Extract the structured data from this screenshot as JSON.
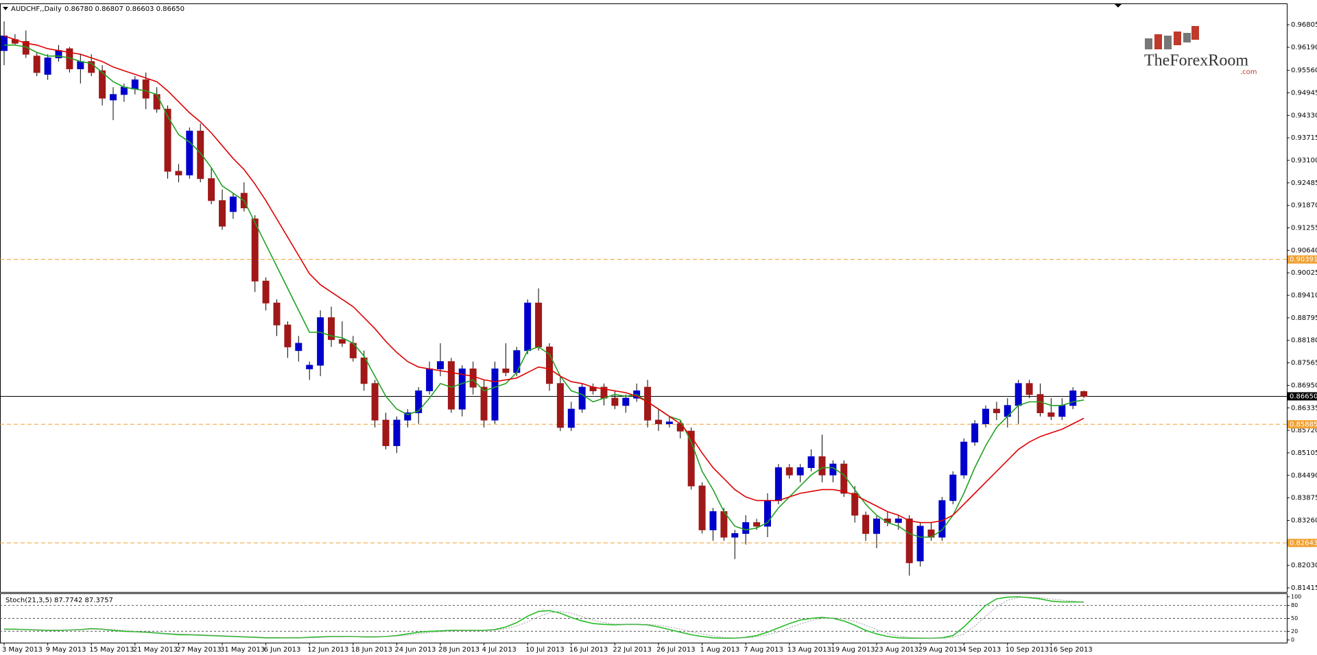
{
  "chart_data": {
    "type": "candlestick",
    "title": "AUDCHF,,Daily",
    "title_values": "0.86780 0.86807 0.86603 0.86650",
    "up_color": "#0000cc",
    "down_color": "#a01818",
    "wick_color": "#000000",
    "categories": [
      "3 May 2013",
      null,
      null,
      null,
      "9 May 2013",
      null,
      null,
      null,
      "15 May 2013",
      null,
      null,
      null,
      "21 May 2013",
      null,
      null,
      null,
      "27 May 2013",
      null,
      null,
      null,
      "31 May 2013",
      null,
      null,
      null,
      "6 Jun 2013",
      null,
      null,
      null,
      "12 Jun 2013",
      null,
      null,
      null,
      "18 Jun 2013",
      null,
      null,
      null,
      "24 Jun 2013",
      null,
      null,
      null,
      "28 Jun 2013",
      null,
      null,
      null,
      "4 Jul 2013",
      null,
      null,
      null,
      "10 Jul 2013",
      null,
      null,
      null,
      "16 Jul 2013",
      null,
      null,
      null,
      "22 Jul 2013",
      null,
      null,
      null,
      "26 Jul 2013",
      null,
      null,
      null,
      "1 Aug 2013",
      null,
      null,
      null,
      "7 Aug 2013",
      null,
      null,
      null,
      "13 Aug 2013",
      null,
      null,
      null,
      "19 Aug 2013",
      null,
      null,
      null,
      "23 Aug 2013",
      null,
      null,
      null,
      "29 Aug 2013",
      null,
      null,
      null,
      "4 Sep 2013",
      null,
      null,
      null,
      "10 Sep 2013",
      null,
      null,
      null,
      "16 Sep 2013",
      null,
      null,
      null
    ],
    "open": [
      0.961,
      0.964,
      0.9635,
      0.9595,
      0.9545,
      0.959,
      0.9615,
      0.956,
      0.958,
      0.9555,
      0.9475,
      0.949,
      0.9505,
      0.953,
      0.949,
      0.945,
      0.928,
      0.927,
      0.939,
      0.926,
      0.92,
      0.917,
      0.922,
      0.915,
      0.898,
      0.892,
      0.886,
      0.879,
      0.874,
      0.875,
      0.888,
      0.882,
      0.881,
      0.877,
      0.87,
      0.86,
      0.853,
      0.86,
      0.862,
      0.868,
      0.874,
      0.876,
      0.863,
      0.874,
      0.869,
      0.86,
      0.874,
      0.873,
      0.879,
      0.892,
      0.88,
      0.87,
      0.858,
      0.863,
      0.869,
      0.869,
      0.866,
      0.864,
      0.866,
      0.869,
      0.86,
      0.859,
      0.859,
      0.857,
      0.842,
      0.83,
      0.835,
      0.828,
      0.829,
      0.832,
      0.831,
      0.838,
      0.847,
      0.845,
      0.847,
      0.85,
      0.845,
      0.848,
      0.84,
      0.834,
      0.829,
      0.833,
      0.832,
      0.833,
      0.8215,
      0.83,
      0.828,
      0.838,
      0.845,
      0.854,
      0.859,
      0.863,
      0.861,
      0.864,
      0.87,
      0.867,
      0.862,
      0.861,
      0.864,
      0.8678
    ],
    "high": [
      0.969,
      0.9655,
      0.9665,
      0.9605,
      0.96,
      0.9625,
      0.962,
      0.96,
      0.96,
      0.957,
      0.951,
      0.952,
      0.954,
      0.955,
      0.951,
      0.946,
      0.93,
      0.94,
      0.941,
      0.929,
      0.923,
      0.922,
      0.925,
      0.916,
      0.899,
      0.893,
      0.887,
      0.883,
      0.876,
      0.89,
      0.891,
      0.887,
      0.883,
      0.879,
      0.871,
      0.862,
      0.861,
      0.863,
      0.869,
      0.876,
      0.881,
      0.877,
      0.875,
      0.876,
      0.871,
      0.876,
      0.881,
      0.88,
      0.893,
      0.896,
      0.881,
      0.872,
      0.865,
      0.87,
      0.87,
      0.87,
      0.868,
      0.867,
      0.87,
      0.871,
      0.863,
      0.861,
      0.86,
      0.858,
      0.843,
      0.836,
      0.836,
      0.83,
      0.834,
      0.833,
      0.84,
      0.848,
      0.848,
      0.848,
      0.852,
      0.856,
      0.849,
      0.849,
      0.842,
      0.835,
      0.834,
      0.835,
      0.834,
      0.834,
      0.832,
      0.832,
      0.839,
      0.846,
      0.855,
      0.86,
      0.864,
      0.865,
      0.866,
      0.871,
      0.871,
      0.87,
      0.866,
      0.866,
      0.869,
      0.86807
    ],
    "low": [
      0.957,
      0.9625,
      0.959,
      0.954,
      0.953,
      0.958,
      0.955,
      0.952,
      0.954,
      0.946,
      0.942,
      0.947,
      0.949,
      0.945,
      0.944,
      0.926,
      0.925,
      0.926,
      0.925,
      0.919,
      0.912,
      0.915,
      0.917,
      0.895,
      0.89,
      0.883,
      0.877,
      0.876,
      0.871,
      0.872,
      0.88,
      0.88,
      0.876,
      0.868,
      0.858,
      0.852,
      0.851,
      0.858,
      0.859,
      0.867,
      0.872,
      0.862,
      0.861,
      0.867,
      0.858,
      0.859,
      0.872,
      0.872,
      0.878,
      0.879,
      0.868,
      0.857,
      0.857,
      0.862,
      0.867,
      0.864,
      0.863,
      0.862,
      0.865,
      0.858,
      0.857,
      0.858,
      0.855,
      0.841,
      0.829,
      0.827,
      0.827,
      0.822,
      0.826,
      0.83,
      0.828,
      0.837,
      0.844,
      0.843,
      0.846,
      0.843,
      0.843,
      0.839,
      0.832,
      0.827,
      0.825,
      0.831,
      0.83,
      0.8175,
      0.82,
      0.827,
      0.827,
      0.837,
      0.844,
      0.853,
      0.858,
      0.86,
      0.858,
      0.859,
      0.866,
      0.861,
      0.86,
      0.86,
      0.863,
      0.86603
    ],
    "close": [
      0.965,
      0.963,
      0.96,
      0.955,
      0.959,
      0.961,
      0.956,
      0.958,
      0.955,
      0.948,
      0.949,
      0.951,
      0.953,
      0.948,
      0.945,
      0.928,
      0.927,
      0.939,
      0.926,
      0.92,
      0.913,
      0.921,
      0.918,
      0.898,
      0.892,
      0.886,
      0.88,
      0.881,
      0.875,
      0.888,
      0.882,
      0.881,
      0.877,
      0.87,
      0.86,
      0.853,
      0.86,
      0.862,
      0.868,
      0.874,
      0.876,
      0.863,
      0.874,
      0.869,
      0.86,
      0.874,
      0.873,
      0.879,
      0.892,
      0.88,
      0.87,
      0.858,
      0.863,
      0.869,
      0.868,
      0.866,
      0.864,
      0.866,
      0.868,
      0.86,
      0.859,
      0.8595,
      0.857,
      0.842,
      0.83,
      0.835,
      0.828,
      0.829,
      0.832,
      0.831,
      0.838,
      0.847,
      0.845,
      0.847,
      0.85,
      0.845,
      0.848,
      0.84,
      0.834,
      0.829,
      0.833,
      0.832,
      0.833,
      0.821,
      0.831,
      0.828,
      0.838,
      0.845,
      0.854,
      0.859,
      0.863,
      0.862,
      0.864,
      0.87,
      0.867,
      0.862,
      0.861,
      0.864,
      0.868,
      0.8665
    ],
    "series": [
      {
        "color": "#22a022",
        "values": [
          0.9625,
          0.9625,
          0.962,
          0.9605,
          0.9595,
          0.9595,
          0.959,
          0.958,
          0.9575,
          0.955,
          0.9525,
          0.951,
          0.9505,
          0.95,
          0.949,
          0.943,
          0.938,
          0.936,
          0.933,
          0.929,
          0.924,
          0.922,
          0.92,
          0.914,
          0.908,
          0.902,
          0.896,
          0.89,
          0.884,
          0.884,
          0.883,
          0.8825,
          0.881,
          0.8775,
          0.872,
          0.8665,
          0.863,
          0.8615,
          0.8625,
          0.866,
          0.87,
          0.869,
          0.87,
          0.871,
          0.868,
          0.869,
          0.87,
          0.873,
          0.879,
          0.88,
          0.878,
          0.872,
          0.868,
          0.867,
          0.865,
          0.866,
          0.867,
          0.8665,
          0.867,
          0.865,
          0.863,
          0.861,
          0.86,
          0.854,
          0.846,
          0.841,
          0.835,
          0.831,
          0.83,
          0.8305,
          0.832,
          0.836,
          0.839,
          0.842,
          0.845,
          0.847,
          0.847,
          0.845,
          0.841,
          0.837,
          0.834,
          0.832,
          0.831,
          0.829,
          0.828,
          0.828,
          0.83,
          0.834,
          0.84,
          0.847,
          0.853,
          0.858,
          0.861,
          0.864,
          0.865,
          0.865,
          0.864,
          0.864,
          0.865,
          0.8655
        ]
      },
      {
        "color": "#dd0000",
        "values": [
          0.965,
          0.964,
          0.963,
          0.9625,
          0.9615,
          0.961,
          0.9605,
          0.96,
          0.959,
          0.958,
          0.9565,
          0.9555,
          0.9545,
          0.9535,
          0.9525,
          0.95,
          0.947,
          0.944,
          0.9415,
          0.9385,
          0.935,
          0.9315,
          0.9285,
          0.9245,
          0.92,
          0.915,
          0.91,
          0.905,
          0.9,
          0.897,
          0.895,
          0.893,
          0.891,
          0.888,
          0.885,
          0.8815,
          0.8785,
          0.876,
          0.8745,
          0.874,
          0.8735,
          0.873,
          0.8725,
          0.872,
          0.871,
          0.8705,
          0.871,
          0.8715,
          0.873,
          0.8745,
          0.874,
          0.872,
          0.8705,
          0.87,
          0.869,
          0.8685,
          0.868,
          0.8675,
          0.8665,
          0.865,
          0.863,
          0.861,
          0.859,
          0.8555,
          0.851,
          0.847,
          0.844,
          0.841,
          0.839,
          0.838,
          0.838,
          0.838,
          0.839,
          0.84,
          0.8405,
          0.841,
          0.841,
          0.8405,
          0.8395,
          0.838,
          0.8365,
          0.835,
          0.834,
          0.8325,
          0.832,
          0.832,
          0.8325,
          0.834,
          0.837,
          0.84,
          0.843,
          0.846,
          0.849,
          0.852,
          0.854,
          0.8555,
          0.8565,
          0.8575,
          0.859,
          0.8605
        ]
      }
    ],
    "ylim": [
      0.8134,
      0.9737
    ],
    "yticks": [
      {
        "value": 0.96805,
        "label": "0.96805"
      },
      {
        "value": 0.9619,
        "label": "0.96190"
      },
      {
        "value": 0.9556,
        "label": "0.95560"
      },
      {
        "value": 0.94945,
        "label": "0.94945"
      },
      {
        "value": 0.9433,
        "label": "0.94330"
      },
      {
        "value": 0.93715,
        "label": "0.93715"
      },
      {
        "value": 0.931,
        "label": "0.93100"
      },
      {
        "value": 0.92485,
        "label": "0.92485"
      },
      {
        "value": 0.9187,
        "label": "0.91870"
      },
      {
        "value": 0.91255,
        "label": "0.91255"
      },
      {
        "value": 0.9064,
        "label": "0.90640"
      },
      {
        "value": 0.90025,
        "label": "0.90025"
      },
      {
        "value": 0.8941,
        "label": "0.89410"
      },
      {
        "value": 0.88795,
        "label": "0.88795"
      },
      {
        "value": 0.8818,
        "label": "0.88180"
      },
      {
        "value": 0.87565,
        "label": "0.87565"
      },
      {
        "value": 0.8695,
        "label": "0.86950"
      },
      {
        "value": 0.86335,
        "label": "0.86335"
      },
      {
        "value": 0.8572,
        "label": "0.85720"
      },
      {
        "value": 0.85105,
        "label": "0.85105"
      },
      {
        "value": 0.8449,
        "label": "0.84490"
      },
      {
        "value": 0.83875,
        "label": "0.83875"
      },
      {
        "value": 0.8326,
        "label": "0.83260"
      },
      {
        "value": 0.82645,
        "label": "0.82645"
      },
      {
        "value": 0.8203,
        "label": "0.82030"
      },
      {
        "value": 0.81415,
        "label": "0.81415"
      }
    ],
    "levels": [
      {
        "value": 0.90391,
        "label": "0.90391"
      },
      {
        "value": 0.85885,
        "label": "0.85885"
      },
      {
        "value": 0.82643,
        "label": "0.82643"
      }
    ],
    "level_color": "#f0a030",
    "price_line": {
      "value": 0.8665,
      "label": "0.86650"
    },
    "logo": {
      "name": "TheForexRoom",
      "suffix": ".com"
    },
    "stochastic": {
      "title": "Stoch(21,3,5) 87.7742 87.3757",
      "ylim": [
        0,
        100
      ],
      "yticks": [
        0,
        20,
        50,
        80,
        100
      ],
      "levels": [
        20,
        50,
        80
      ],
      "series": [
        {
          "color": "#22bb22",
          "values": [
            25,
            25,
            24,
            23,
            22,
            22,
            23,
            24,
            26,
            25,
            22,
            20,
            19,
            18,
            16,
            14,
            12,
            12,
            11,
            10,
            9,
            8,
            7,
            6,
            5,
            5,
            5,
            5,
            6,
            7,
            8,
            8,
            8,
            7,
            7,
            8,
            10,
            14,
            18,
            20,
            21,
            22,
            22,
            22,
            22,
            24,
            30,
            40,
            55,
            66,
            68,
            62,
            52,
            44,
            38,
            36,
            35,
            36,
            36,
            35,
            30,
            24,
            18,
            12,
            8,
            5,
            4,
            4,
            6,
            10,
            18,
            28,
            38,
            46,
            50,
            52,
            50,
            44,
            34,
            22,
            14,
            8,
            5,
            4,
            4,
            4,
            5,
            10,
            30,
            55,
            80,
            95,
            99,
            100,
            98,
            95,
            90,
            88,
            88,
            87.7742
          ]
        },
        {
          "color": "#999999",
          "values": [
            24,
            24,
            24,
            24,
            23,
            23,
            23,
            24,
            25,
            25,
            24,
            22,
            20,
            19,
            17,
            15,
            14,
            13,
            12,
            11,
            10,
            9,
            8,
            7,
            6,
            6,
            5,
            5,
            5,
            6,
            7,
            7,
            8,
            8,
            8,
            8,
            9,
            11,
            14,
            17,
            19,
            21,
            22,
            22,
            22,
            23,
            26,
            32,
            42,
            54,
            63,
            66,
            62,
            54,
            46,
            40,
            37,
            36,
            36,
            36,
            34,
            30,
            25,
            19,
            14,
            9,
            6,
            5,
            5,
            7,
            12,
            19,
            28,
            37,
            45,
            50,
            51,
            49,
            43,
            34,
            24,
            15,
            9,
            6,
            5,
            4,
            4,
            6,
            14,
            32,
            55,
            77,
            92,
            98,
            99,
            98,
            95,
            92,
            90,
            87.3757
          ]
        }
      ]
    }
  }
}
